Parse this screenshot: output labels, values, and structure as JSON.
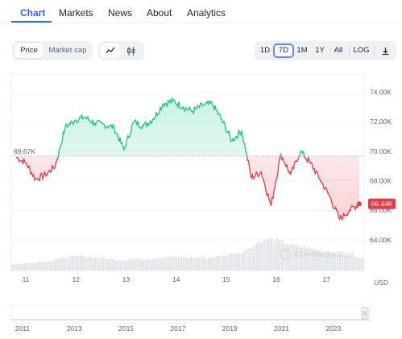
{
  "tabs": [
    {
      "label": "Chart",
      "active": true
    },
    {
      "label": "Markets"
    },
    {
      "label": "News"
    },
    {
      "label": "About"
    },
    {
      "label": "Analytics"
    }
  ],
  "toolbar": {
    "view_toggle": {
      "price": "Price",
      "market_cap": "Market cap",
      "selected": "Price"
    },
    "chart_type": {
      "selected": "line-chart-icon",
      "options": [
        "line-chart-icon",
        "candlestick-icon"
      ]
    },
    "ranges": [
      "1D",
      "7D",
      "1M",
      "1Y",
      "All"
    ],
    "selected_range": "7D",
    "log_label": "LOG",
    "download_icon": "download-icon"
  },
  "chart_data": {
    "type": "line",
    "currency": "USD",
    "x_tick_labels": [
      "11",
      "12",
      "13",
      "14",
      "15",
      "16",
      "17"
    ],
    "y_tick_labels": [
      "74.00K",
      "72.00K",
      "70.00K",
      "68.00K",
      "66.00K",
      "64.00K"
    ],
    "ylim": [
      62800,
      75000
    ],
    "reference_label": "69.67K",
    "reference_value": 69670,
    "last_price_label": "66.44K",
    "last_price_value": 66440,
    "watermark": "CoinMarketCap",
    "colors": {
      "above": "#16c784",
      "below": "#ea3943",
      "volume": "#e1e5ea",
      "last_badge": "#ea3943"
    },
    "x": [
      0,
      0.2,
      0.4,
      0.6,
      0.8,
      1.0,
      1.2,
      1.4,
      1.6,
      1.8,
      2.0,
      2.2,
      2.4,
      2.6,
      2.8,
      3.0,
      3.2,
      3.4,
      3.6,
      3.8,
      4.0,
      4.2,
      4.4,
      4.6,
      4.8,
      5.0,
      5.2,
      5.4,
      5.6,
      5.8,
      6.0,
      6.2,
      6.4,
      6.6,
      6.8,
      7.0
    ],
    "series": [
      {
        "values": [
          69600,
          69200,
          68100,
          68400,
          69000,
          71600,
          72100,
          72300,
          71900,
          71800,
          71600,
          70100,
          72000,
          71700,
          72200,
          73200,
          73400,
          73000,
          72700,
          73100,
          73200,
          72100,
          70700,
          71400,
          68200,
          68600,
          66300,
          69800,
          68400,
          70000,
          69200,
          68100,
          66900,
          65400,
          66000,
          66440
        ]
      }
    ],
    "volume_normalized": [
      0.2,
      0.23,
      0.26,
      0.28,
      0.32,
      0.4,
      0.44,
      0.46,
      0.43,
      0.4,
      0.36,
      0.33,
      0.38,
      0.36,
      0.39,
      0.42,
      0.45,
      0.43,
      0.41,
      0.42,
      0.43,
      0.46,
      0.55,
      0.6,
      0.78,
      0.96,
      1.0,
      0.9,
      0.8,
      0.75,
      0.7,
      0.62,
      0.58,
      0.5,
      0.45,
      0.38
    ]
  },
  "navigator": {
    "year_labels": [
      "2011",
      "2013",
      "2015",
      "2017",
      "2019",
      "2021",
      "2023"
    ]
  }
}
